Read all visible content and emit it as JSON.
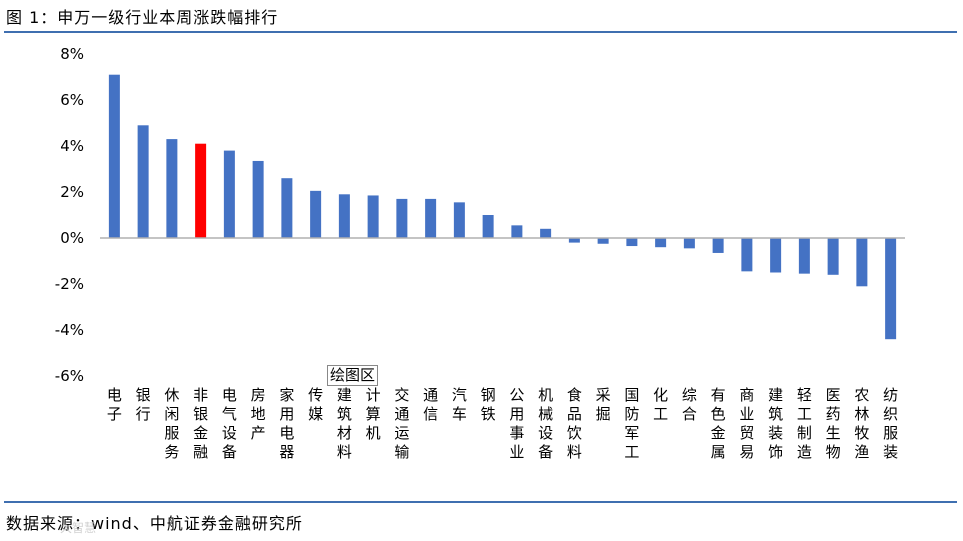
{
  "figure": {
    "title": "图 1：申万一级行业本周涨跌幅排行",
    "source": "数据来源：wind、中航证券金融研究所",
    "plot_area_label": "绘图区",
    "watermark": "大智慧"
  },
  "colors": {
    "default": "#4472c4",
    "highlight": "#ff0000",
    "rule": "#3f6fb0"
  },
  "chart_data": {
    "type": "bar",
    "title": "申万一级行业本周涨跌幅排行",
    "xlabel": "",
    "ylabel": "",
    "ylim": [
      -6,
      8
    ],
    "yticks": [
      8,
      6,
      4,
      2,
      0,
      -2,
      -4,
      -6
    ],
    "ytick_labels": [
      "8%",
      "6%",
      "4%",
      "2%",
      "0%",
      "-2%",
      "-4%",
      "-6%"
    ],
    "unit": "%",
    "grid": false,
    "legend": "none",
    "highlight_category": "非银金融",
    "categories": [
      "电子",
      "银行",
      "休闲服务",
      "非银金融",
      "电气设备",
      "房地产",
      "家用电器",
      "传媒",
      "建筑材料",
      "计算机",
      "交通运输",
      "通信",
      "汽车",
      "钢铁",
      "公用事业",
      "机械设备",
      "食品饮料",
      "采掘",
      "国防军工",
      "化工",
      "综合",
      "有色金属",
      "商业贸易",
      "建筑装饰",
      "轻工制造",
      "医药生物",
      "农林牧渔",
      "纺织服装"
    ],
    "values": [
      7.1,
      4.9,
      4.3,
      4.1,
      3.8,
      3.35,
      2.6,
      2.05,
      1.9,
      1.85,
      1.7,
      1.7,
      1.55,
      1.0,
      0.55,
      0.4,
      -0.2,
      -0.25,
      -0.35,
      -0.4,
      -0.45,
      -0.65,
      -1.45,
      -1.5,
      -1.55,
      -1.6,
      -2.1,
      -4.4
    ]
  }
}
